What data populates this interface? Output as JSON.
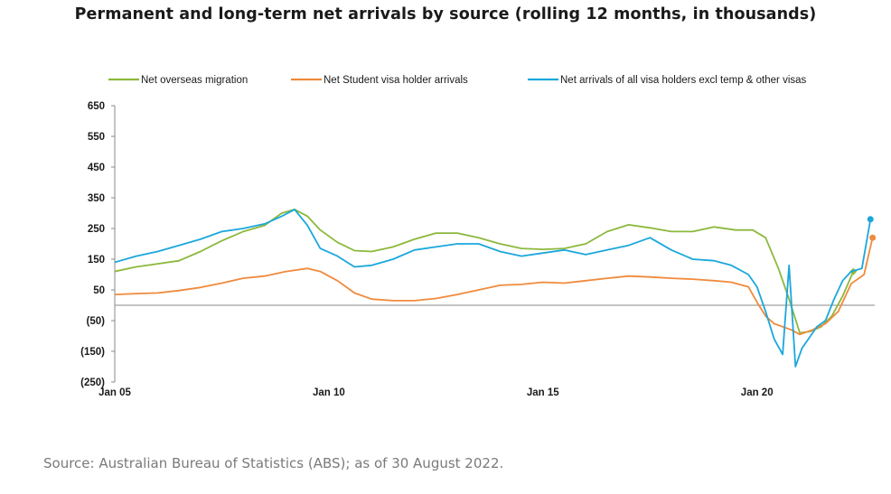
{
  "page": {
    "title": "Permanent and long-term net arrivals by source (rolling 12 months, in thousands)",
    "source": "Source: Australian Bureau of Statistics (ABS); as of 30 August 2022."
  },
  "chart_data": {
    "type": "line",
    "title": "Permanent and long-term net arrivals by source (rolling 12 months, in thousands)",
    "xlabel": "",
    "ylabel": "",
    "xlim": [
      2005.0,
      2022.75
    ],
    "ylim": [
      -250,
      650
    ],
    "y_ticks": [
      650,
      550,
      450,
      350,
      250,
      150,
      50,
      -50,
      -150,
      -250
    ],
    "y_tick_labels": [
      "650",
      "550",
      "450",
      "350",
      "250",
      "150",
      "50",
      "(50)",
      "(150)",
      "(250)"
    ],
    "x_ticks": [
      2005,
      2010,
      2015,
      2020
    ],
    "x_tick_labels": [
      "Jan 05",
      "Jan 10",
      "Jan 15",
      "Jan 20"
    ],
    "grid": false,
    "legend_position": "top",
    "series": [
      {
        "name": "Net overseas migration",
        "color": "#8cb83c",
        "marker_at_end": "diamond",
        "x": [
          2005.0,
          2005.5,
          2006.0,
          2006.5,
          2007.0,
          2007.5,
          2008.0,
          2008.5,
          2008.9,
          2009.2,
          2009.5,
          2009.8,
          2010.2,
          2010.6,
          2011.0,
          2011.5,
          2012.0,
          2012.5,
          2013.0,
          2013.5,
          2014.0,
          2014.5,
          2015.0,
          2015.5,
          2016.0,
          2016.5,
          2017.0,
          2017.5,
          2018.0,
          2018.5,
          2019.0,
          2019.5,
          2019.9,
          2020.2,
          2020.5,
          2020.75,
          2021.0,
          2021.25,
          2021.5,
          2021.75,
          2022.0,
          2022.25
        ],
        "values": [
          110,
          125,
          135,
          145,
          175,
          210,
          240,
          260,
          300,
          312,
          290,
          245,
          205,
          178,
          175,
          190,
          215,
          235,
          235,
          220,
          200,
          185,
          182,
          185,
          200,
          240,
          262,
          252,
          240,
          240,
          255,
          245,
          245,
          220,
          120,
          20,
          -90,
          -85,
          -70,
          -35,
          30,
          110
        ]
      },
      {
        "name": "Net Student visa holder arrivals",
        "color": "#f08a3c",
        "marker_at_end": "circle",
        "x": [
          2005.0,
          2005.5,
          2006.0,
          2006.5,
          2007.0,
          2007.5,
          2008.0,
          2008.5,
          2009.0,
          2009.5,
          2009.8,
          2010.2,
          2010.6,
          2011.0,
          2011.5,
          2012.0,
          2012.5,
          2013.0,
          2013.5,
          2014.0,
          2014.5,
          2015.0,
          2015.5,
          2016.0,
          2016.5,
          2017.0,
          2017.5,
          2018.0,
          2018.5,
          2019.0,
          2019.4,
          2019.8,
          2020.0,
          2020.2,
          2020.4,
          2020.6,
          2020.8,
          2021.0,
          2021.3,
          2021.6,
          2021.9,
          2022.2,
          2022.5,
          2022.7
        ],
        "values": [
          35,
          38,
          40,
          48,
          58,
          72,
          88,
          95,
          110,
          120,
          110,
          80,
          40,
          20,
          15,
          15,
          22,
          35,
          50,
          65,
          68,
          75,
          72,
          80,
          88,
          95,
          92,
          88,
          85,
          80,
          75,
          60,
          10,
          -35,
          -60,
          -70,
          -80,
          -95,
          -80,
          -60,
          -20,
          70,
          100,
          220
        ]
      },
      {
        "name": "Net arrivals of all visa holders excl temp & other visas",
        "color": "#1ba7dc",
        "marker_at_end": "circle",
        "x": [
          2005.0,
          2005.5,
          2006.0,
          2006.5,
          2007.0,
          2007.5,
          2008.0,
          2008.5,
          2008.9,
          2009.2,
          2009.5,
          2009.8,
          2010.2,
          2010.6,
          2011.0,
          2011.5,
          2012.0,
          2012.5,
          2013.0,
          2013.5,
          2014.0,
          2014.5,
          2015.0,
          2015.5,
          2016.0,
          2016.5,
          2017.0,
          2017.5,
          2018.0,
          2018.5,
          2019.0,
          2019.4,
          2019.8,
          2020.0,
          2020.2,
          2020.4,
          2020.6,
          2020.75,
          2020.9,
          2021.05,
          2021.2,
          2021.4,
          2021.6,
          2021.8,
          2022.0,
          2022.2,
          2022.45,
          2022.65
        ],
        "values": [
          140,
          160,
          175,
          195,
          215,
          240,
          250,
          265,
          290,
          312,
          260,
          185,
          160,
          125,
          130,
          150,
          180,
          190,
          200,
          200,
          175,
          160,
          170,
          180,
          165,
          180,
          195,
          220,
          180,
          150,
          145,
          130,
          100,
          60,
          -20,
          -110,
          -160,
          130,
          -200,
          -140,
          -110,
          -70,
          -50,
          20,
          80,
          110,
          120,
          280
        ]
      }
    ]
  }
}
